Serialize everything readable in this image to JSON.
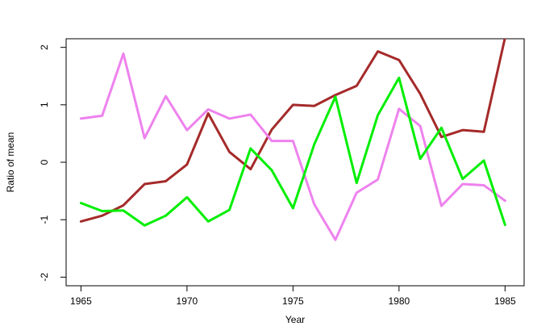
{
  "chart_data": {
    "type": "line",
    "xlabel": "Year",
    "ylabel": "Ratio of mean",
    "xlim": [
      1964.3,
      1985.9
    ],
    "ylim": [
      -2.15,
      2.15
    ],
    "grid": false,
    "x": [
      1965,
      1966,
      1967,
      1968,
      1969,
      1970,
      1971,
      1972,
      1973,
      1974,
      1975,
      1976,
      1977,
      1978,
      1979,
      1980,
      1981,
      1982,
      1983,
      1984,
      1985
    ],
    "x_ticks": [
      1965,
      1970,
      1975,
      1980,
      1985
    ],
    "y_ticks": [
      -2,
      -1,
      0,
      1,
      2
    ],
    "series": [
      {
        "color": "#a52a2a",
        "values": [
          -1.03,
          -0.93,
          -0.75,
          -0.38,
          -0.33,
          -0.04,
          0.85,
          0.18,
          -0.12,
          0.57,
          1.0,
          0.98,
          1.17,
          1.33,
          1.93,
          1.78,
          1.19,
          0.44,
          0.56,
          0.53,
          2.17
        ]
      },
      {
        "color": "#ee82ee",
        "values": [
          0.76,
          0.81,
          1.89,
          0.42,
          1.15,
          0.56,
          0.92,
          0.76,
          0.83,
          0.37,
          0.37,
          -0.73,
          -1.35,
          -0.53,
          -0.3,
          0.93,
          0.63,
          -0.76,
          -0.38,
          -0.4,
          -0.67
        ]
      },
      {
        "color": "#00ee00",
        "values": [
          -0.71,
          -0.85,
          -0.84,
          -1.1,
          -0.93,
          -0.61,
          -1.03,
          -0.83,
          0.24,
          -0.14,
          -0.8,
          0.31,
          1.14,
          -0.36,
          0.82,
          1.47,
          0.06,
          0.6,
          -0.29,
          0.03,
          -1.09
        ]
      }
    ]
  }
}
